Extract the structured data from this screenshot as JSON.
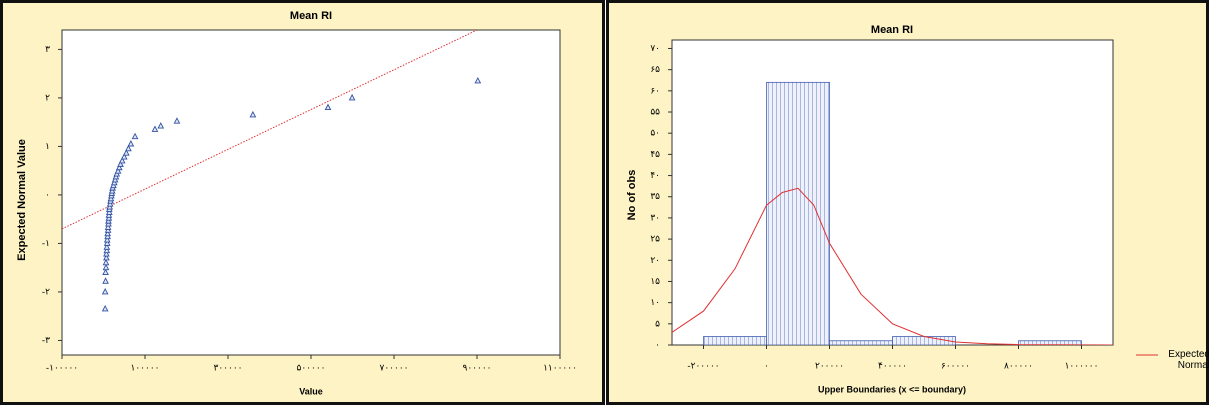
{
  "chart_data": [
    {
      "type": "scatter",
      "title": "Mean RI",
      "xlabel": "Value",
      "ylabel": "Expected Normal Value",
      "color": "#3050a0",
      "marker": "triangle",
      "x": [
        4000,
        4000,
        5000,
        5000,
        6000,
        6000,
        7000,
        7000,
        8000,
        8000,
        9000,
        9000,
        10000,
        10000,
        11000,
        11000,
        12000,
        12000,
        13000,
        13000,
        14000,
        14000,
        15000,
        16000,
        17000,
        18000,
        19000,
        20000,
        21000,
        22000,
        24000,
        26000,
        28000,
        30000,
        32000,
        35000,
        38000,
        41000,
        45000,
        50000,
        55000,
        60000,
        66000,
        76000,
        124000,
        138000,
        177000,
        360000,
        541000,
        599000,
        902000
      ],
      "y": [
        -2.35,
        -2.0,
        -1.78,
        -1.6,
        -1.5,
        -1.4,
        -1.3,
        -1.22,
        -1.15,
        -1.08,
        -1.0,
        -0.93,
        -0.86,
        -0.8,
        -0.73,
        -0.67,
        -0.6,
        -0.54,
        -0.48,
        -0.42,
        -0.36,
        -0.3,
        -0.25,
        -0.19,
        -0.13,
        -0.08,
        -0.02,
        0.03,
        0.08,
        0.14,
        0.19,
        0.25,
        0.31,
        0.37,
        0.43,
        0.49,
        0.56,
        0.63,
        0.7,
        0.78,
        0.86,
        0.95,
        1.05,
        1.2,
        1.35,
        1.42,
        1.52,
        1.65,
        1.8,
        2.0,
        2.35
      ],
      "reference_line": {
        "color": "#e03030",
        "x": [
          -100000,
          900000
        ],
        "y": [
          -0.7,
          3.4
        ]
      },
      "xlim": [
        -100000,
        1100000
      ],
      "ylim": [
        -3.3,
        3.4
      ],
      "xticks": [
        {
          "value": -100000,
          "label": "-۱۰۰۰۰۰"
        },
        {
          "value": 100000,
          "label": "۱۰۰۰۰۰"
        },
        {
          "value": 300000,
          "label": "۳۰۰۰۰۰"
        },
        {
          "value": 500000,
          "label": "۵۰۰۰۰۰"
        },
        {
          "value": 700000,
          "label": "۷۰۰۰۰۰"
        },
        {
          "value": 900000,
          "label": "۹۰۰۰۰۰"
        },
        {
          "value": 1100000,
          "label": "۱۱۰۰۰۰۰"
        }
      ],
      "yticks": [
        {
          "value": -3,
          "label": "-۳"
        },
        {
          "value": -2,
          "label": "-۲"
        },
        {
          "value": -1,
          "label": "-۱"
        },
        {
          "value": 0,
          "label": "۰"
        },
        {
          "value": 1,
          "label": "۱"
        },
        {
          "value": 2,
          "label": "۲"
        },
        {
          "value": 3,
          "label": "۳"
        }
      ]
    },
    {
      "type": "histogram",
      "title": "Mean RI",
      "xlabel": "Upper Boundaries (x <= boundary)",
      "ylabel": "No of obs",
      "color": "#4060b0",
      "bins": [
        -200000,
        0,
        200000,
        400000,
        600000,
        800000,
        1000000
      ],
      "counts": [
        2,
        62,
        1,
        2,
        0,
        1
      ],
      "curve": {
        "name": "Expected Normal",
        "color": "#e03030",
        "x": [
          -300000,
          -200000,
          -100000,
          0,
          50000,
          100000,
          150000,
          200000,
          300000,
          400000,
          500000,
          600000,
          700000,
          800000,
          1100000
        ],
        "y": [
          3,
          8,
          18,
          33,
          36,
          37,
          33,
          24,
          12,
          5,
          2,
          0.7,
          0.3,
          0.1,
          0
        ]
      },
      "legend": "right",
      "xlim": [
        -300000,
        1100000
      ],
      "ylim": [
        0,
        72
      ],
      "xticks": [
        {
          "value": -200000,
          "label": "-۲۰۰۰۰۰"
        },
        {
          "value": 0,
          "label": "۰"
        },
        {
          "value": 200000,
          "label": "۲۰۰۰۰۰"
        },
        {
          "value": 400000,
          "label": "۴۰۰۰۰۰"
        },
        {
          "value": 600000,
          "label": "۶۰۰۰۰۰"
        },
        {
          "value": 800000,
          "label": "۸۰۰۰۰۰"
        },
        {
          "value": 1000000,
          "label": "۱۰۰۰۰۰۰"
        }
      ],
      "yticks": [
        {
          "value": 0,
          "label": "۰"
        },
        {
          "value": 5,
          "label": "۵"
        },
        {
          "value": 10,
          "label": "۱۰"
        },
        {
          "value": 15,
          "label": "۱۵"
        },
        {
          "value": 20,
          "label": "۲۰"
        },
        {
          "value": 25,
          "label": "۲۵"
        },
        {
          "value": 30,
          "label": "۳۰"
        },
        {
          "value": 35,
          "label": "۳۵"
        },
        {
          "value": 40,
          "label": "۴۰"
        },
        {
          "value": 45,
          "label": "۴۵"
        },
        {
          "value": 50,
          "label": "۵۰"
        },
        {
          "value": 55,
          "label": "۵۵"
        },
        {
          "value": 60,
          "label": "۶۰"
        },
        {
          "value": 65,
          "label": "۶۵"
        },
        {
          "value": 70,
          "label": "۷۰"
        }
      ]
    }
  ]
}
